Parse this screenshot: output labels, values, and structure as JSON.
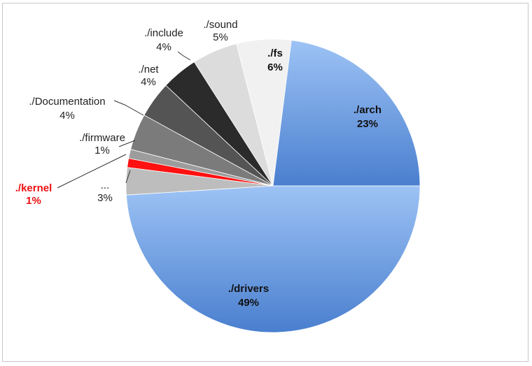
{
  "chart_data": {
    "type": "pie",
    "start": "3 o'clock, clockwise",
    "slices": [
      {
        "label": "./drivers",
        "pct_label": "49%",
        "value": 49,
        "color": "#7aa7e6",
        "color_dark": "#4f82d0",
        "label_style": "inside"
      },
      {
        "label": "...",
        "pct_label": "3%",
        "value": 3,
        "color": "#bdbdbd",
        "label_style": "outside"
      },
      {
        "label": "./kernel",
        "pct_label": "1%",
        "value": 1,
        "color": "#ff1111",
        "label_style": "outside-red"
      },
      {
        "label": "./firmware",
        "pct_label": "1%",
        "value": 1,
        "color": "#9c9c9c",
        "label_style": "outside"
      },
      {
        "label": "./Documentation",
        "pct_label": "4%",
        "value": 4,
        "color": "#7b7b7b",
        "label_style": "outside"
      },
      {
        "label": "./net",
        "pct_label": "4%",
        "value": 4,
        "color": "#545454",
        "label_style": "outside"
      },
      {
        "label": "./include",
        "pct_label": "4%",
        "value": 4,
        "color": "#2b2b2b",
        "label_style": "outside"
      },
      {
        "label": "./sound",
        "pct_label": "5%",
        "value": 5,
        "color": "#dcdcdc",
        "label_style": "outside"
      },
      {
        "label": "./fs",
        "pct_label": "6%",
        "value": 6,
        "color": "#f1f1f1",
        "label_style": "inside"
      },
      {
        "label": "./arch",
        "pct_label": "23%",
        "value": 23,
        "color": "#6f9fe3",
        "color_dark": "#4a7fcf",
        "label_style": "inside"
      }
    ]
  }
}
